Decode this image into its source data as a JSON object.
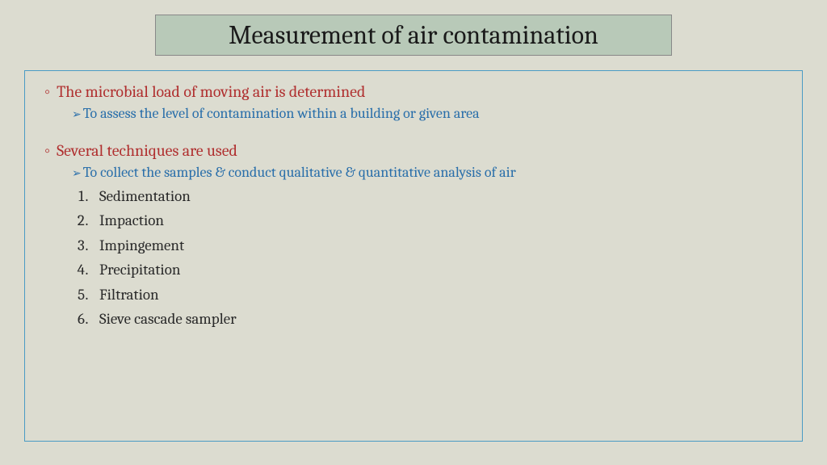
{
  "title": "Measurement of air contamination",
  "section1": {
    "head": "The microbial load of moving air is determined",
    "sub": "To assess the level of contamination within a building or given area"
  },
  "section2": {
    "head": "Several techniques are used",
    "sub": "To collect the samples & conduct qualitative & quantitative analysis of air",
    "items": [
      "Sedimentation",
      "Impaction",
      "Impingement",
      "Precipitation",
      "Filtration",
      "Sieve cascade sampler"
    ]
  },
  "colors": {
    "background": "#dcdcd0",
    "title_bg": "#b8c9b8",
    "title_border": "#888888",
    "content_border": "#4a9bc4",
    "head_color": "#b03030",
    "sub_color": "#2a6faa",
    "list_color": "#2a2a2a"
  }
}
